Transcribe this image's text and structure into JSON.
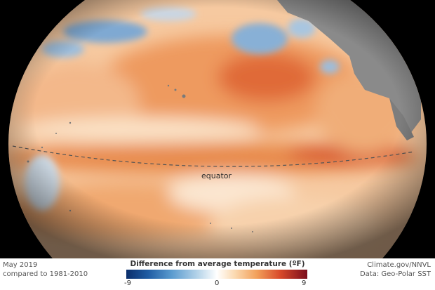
{
  "map": {
    "equator_label": "equator",
    "colors": {
      "warm_anomaly": "#e8743c",
      "cool_anomaly": "#5a9bcf",
      "land": "#8a8a8a",
      "space": "#000000"
    }
  },
  "footer": {
    "date": "May 2019",
    "baseline": "compared to 1981-2010",
    "credit": "Climate.gov/NNVL",
    "data_source": "Data: Geo-Polar SST"
  },
  "legend": {
    "title": "Difference from average temperature (ºF)",
    "min": "-9",
    "mid": "0",
    "max": "9"
  }
}
